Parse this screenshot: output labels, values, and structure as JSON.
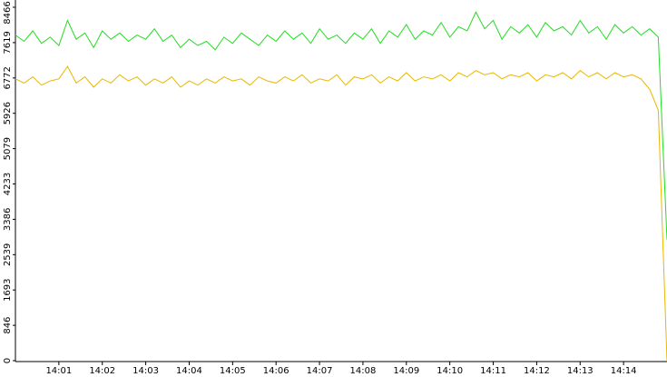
{
  "chart_data": {
    "type": "line",
    "x": [
      0,
      0.2,
      0.4,
      0.6,
      0.8,
      1,
      1.2,
      1.4,
      1.6,
      1.8,
      2,
      2.2,
      2.4,
      2.6,
      2.8,
      3,
      3.2,
      3.4,
      3.6,
      3.8,
      4,
      4.2,
      4.4,
      4.6,
      4.8,
      5,
      5.2,
      5.4,
      5.6,
      5.8,
      6,
      6.2,
      6.4,
      6.6,
      6.8,
      7,
      7.2,
      7.4,
      7.6,
      7.8,
      8,
      8.2,
      8.4,
      8.6,
      8.8,
      9,
      9.2,
      9.4,
      9.6,
      9.8,
      10,
      10.2,
      10.4,
      10.6,
      10.8,
      11,
      11.2,
      11.4,
      11.6,
      11.8,
      12,
      12.2,
      12.4,
      12.6,
      12.8,
      13,
      13.2,
      13.4,
      13.6,
      13.8,
      14,
      14.2,
      14.4,
      14.6,
      14.8,
      15
    ],
    "series": [
      {
        "name": "green",
        "color": "#22dd22",
        "values": [
          7800,
          7650,
          7900,
          7600,
          7750,
          7550,
          8150,
          7700,
          7850,
          7500,
          7900,
          7700,
          7850,
          7650,
          7800,
          7700,
          7950,
          7650,
          7800,
          7500,
          7700,
          7550,
          7650,
          7450,
          7750,
          7600,
          7850,
          7700,
          7550,
          7800,
          7650,
          7900,
          7700,
          7850,
          7600,
          7950,
          7700,
          7800,
          7600,
          7850,
          7700,
          7950,
          7600,
          7900,
          7750,
          8050,
          7700,
          7900,
          7800,
          8100,
          7750,
          8000,
          7900,
          8350,
          7950,
          8150,
          7700,
          8000,
          7850,
          8050,
          7750,
          8100,
          7900,
          8000,
          7800,
          8150,
          7850,
          8000,
          7700,
          8050,
          7850,
          8000,
          7800,
          7950,
          7750,
          2900
        ]
      },
      {
        "name": "yellow",
        "color": "#e8b800",
        "values": [
          6750,
          6650,
          6800,
          6600,
          6700,
          6750,
          7050,
          6650,
          6800,
          6550,
          6750,
          6650,
          6850,
          6700,
          6800,
          6600,
          6750,
          6650,
          6800,
          6550,
          6700,
          6600,
          6750,
          6650,
          6800,
          6700,
          6750,
          6600,
          6800,
          6700,
          6650,
          6800,
          6700,
          6850,
          6650,
          6750,
          6700,
          6850,
          6600,
          6800,
          6750,
          6850,
          6650,
          6800,
          6700,
          6900,
          6700,
          6800,
          6750,
          6850,
          6700,
          6900,
          6800,
          6950,
          6850,
          6900,
          6750,
          6850,
          6800,
          6900,
          6700,
          6850,
          6800,
          6900,
          6750,
          6950,
          6800,
          6900,
          6750,
          6900,
          6800,
          6850,
          6750,
          6500,
          6000,
          0
        ]
      }
    ],
    "xlim": [
      0,
      15
    ],
    "xticks": [
      {
        "value": 1,
        "label": "14:01"
      },
      {
        "value": 2,
        "label": "14:02"
      },
      {
        "value": 3,
        "label": "14:03"
      },
      {
        "value": 4,
        "label": "14:04"
      },
      {
        "value": 5,
        "label": "14:05"
      },
      {
        "value": 6,
        "label": "14:06"
      },
      {
        "value": 7,
        "label": "14:07"
      },
      {
        "value": 8,
        "label": "14:08"
      },
      {
        "value": 9,
        "label": "14:09"
      },
      {
        "value": 10,
        "label": "14:10"
      },
      {
        "value": 11,
        "label": "14:11"
      },
      {
        "value": 12,
        "label": "14:12"
      },
      {
        "value": 13,
        "label": "14:13"
      },
      {
        "value": 14,
        "label": "14:14"
      }
    ],
    "ylim": [
      0,
      8466
    ],
    "yticks": [
      0,
      846,
      1693,
      2539,
      3386,
      4233,
      5079,
      5926,
      6772,
      7619,
      8466
    ]
  }
}
